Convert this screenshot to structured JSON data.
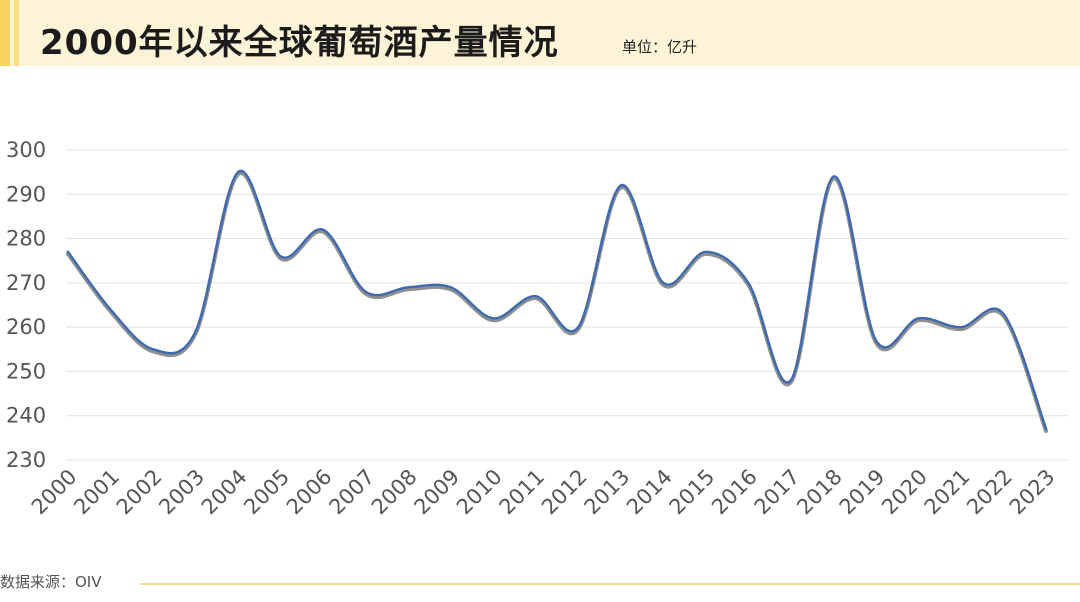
{
  "header": {
    "title": "2000年以来全球葡萄酒产量情况",
    "unit": "单位：亿升"
  },
  "footer": {
    "source": "数据来源：OIV"
  },
  "colors": {
    "header_bg": "#fdf4d8",
    "accent": "#f7d25c",
    "line": "#3e6bb0",
    "line_shadow": "#8f8f8f",
    "grid": "#e3e3e3"
  },
  "chart_data": {
    "type": "line",
    "title": "2000年以来全球葡萄酒产量情况",
    "xlabel": "",
    "ylabel": "",
    "categories": [
      "2000",
      "2001",
      "2002",
      "2003",
      "2004",
      "2005",
      "2006",
      "2007",
      "2008",
      "2009",
      "2010",
      "2011",
      "2012",
      "2013",
      "2014",
      "2015",
      "2016",
      "2017",
      "2018",
      "2019",
      "2020",
      "2021",
      "2022",
      "2023"
    ],
    "series": [
      {
        "values": [
          277,
          264,
          255,
          259,
          295,
          276,
          282,
          268,
          269,
          269,
          262,
          267,
          260,
          292,
          270,
          277,
          270,
          248,
          294,
          257,
          262,
          260,
          263,
          237
        ]
      }
    ],
    "ylim": [
      230,
      300
    ],
    "yticks": [
      230,
      240,
      250,
      260,
      270,
      280,
      290,
      300
    ],
    "grid": true,
    "smooth": true,
    "legend": "none"
  }
}
